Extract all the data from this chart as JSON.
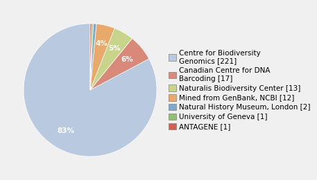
{
  "labels": [
    "Centre for Biodiversity\nGenomics [221]",
    "Canadian Centre for DNA\nBarcoding [17]",
    "Naturalis Biodiversity Center [13]",
    "Mined from GenBank, NCBI [12]",
    "Natural History Museum, London [2]",
    "University of Geneva [1]",
    "ANTAGENE [1]"
  ],
  "values": [
    221,
    17,
    13,
    12,
    2,
    1,
    1
  ],
  "colors": [
    "#b8c9e0",
    "#d9897a",
    "#c8d48a",
    "#e8a96a",
    "#7da8cc",
    "#90c070",
    "#d06050"
  ],
  "background_color": "#f0f0f0",
  "startangle": 90,
  "legend_fontsize": 7.5,
  "pct_fontsize": 7.5
}
